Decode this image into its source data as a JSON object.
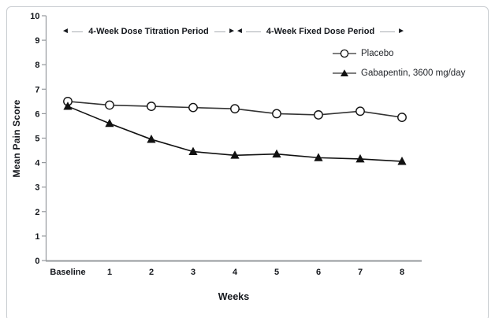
{
  "figure": {
    "annotations": {
      "titration": "4-Week Dose Titration Period",
      "fixed": "4-Week Fixed Dose Period"
    },
    "glyphs": {
      "left_arrow": "◄",
      "right_arrow": "►"
    }
  },
  "chart_data": {
    "type": "line",
    "categories": [
      "Baseline",
      "1",
      "2",
      "3",
      "4",
      "5",
      "6",
      "7",
      "8"
    ],
    "series": [
      {
        "name": "Placebo",
        "marker": "open-circle",
        "color": "#333333",
        "values": [
          6.5,
          6.35,
          6.3,
          6.25,
          6.2,
          6.0,
          5.95,
          6.1,
          5.85
        ]
      },
      {
        "name": "Gabapentin, 3600 mg/day",
        "marker": "filled-triangle",
        "color": "#111111",
        "values": [
          6.3,
          5.6,
          4.95,
          4.45,
          4.3,
          4.35,
          4.2,
          4.15,
          4.05
        ]
      }
    ],
    "title": "",
    "xlabel": "Weeks",
    "ylabel": "Mean Pain Score",
    "ylim": [
      0,
      10
    ],
    "yticks": [
      0,
      1,
      2,
      3,
      4,
      5,
      6,
      7,
      8,
      9,
      10
    ],
    "grid": false,
    "legend_position": "upper right",
    "axis_color": "#94989c"
  }
}
